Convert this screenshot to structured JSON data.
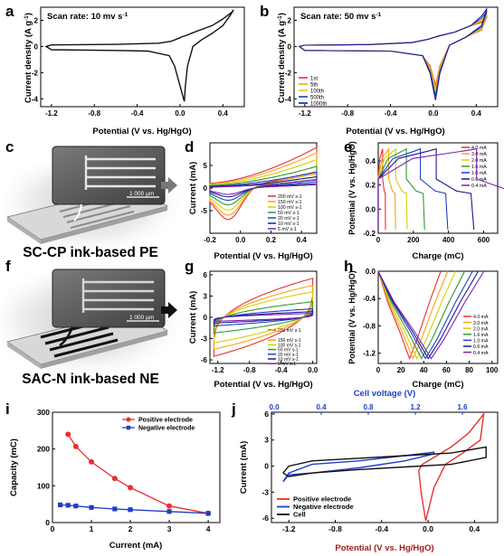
{
  "colors": {
    "red": "#e8312f",
    "orange": "#f5a31a",
    "yellow": "#d8d000",
    "green": "#2f9a2f",
    "blue": "#1f3fc4",
    "navy": "#1b1b8f",
    "purple": "#7d1fb3",
    "black": "#111111",
    "darkred": "#a61a1a"
  },
  "panel_labels": {
    "a": "a",
    "b": "b",
    "c": "c",
    "d": "d",
    "e": "e",
    "f": "f",
    "g": "g",
    "h": "h",
    "i": "i",
    "j": "j"
  },
  "axis_texts": {
    "current_density": "Current density (A g",
    "sup_m1": "-1",
    "close_paren": ")",
    "potential_x": "Potential (V vs. Hg/HgO)",
    "current_ma": "Current (mA)",
    "potential_y": "Potential (V vs. Hg/HgO)",
    "charge": "Charge (mC)",
    "capacity": "Capacity (mC)",
    "current_x": "Current (mA)",
    "cell_voltage": "Cell voltage (V)"
  },
  "annotations": {
    "scan_a": "Scan rate: 10 mv s",
    "scan_b": "Scan rate: 50 mv s",
    "scan_sup": "-1",
    "c_title": "SC-CP ink-based PE",
    "f_title": "SAC-N ink-based NE",
    "scale_c": "1 000 µm",
    "scale_f": "1 000 µm"
  },
  "chart_data": [
    {
      "panel": "a",
      "type": "line",
      "xlabel": "Potential (V vs. Hg/HgO)",
      "ylabel": "Current density (A g-1)",
      "xlim": [
        -1.3,
        0.6
      ],
      "ylim": [
        -4.6,
        3.0
      ],
      "xticks": [
        "-1.2",
        "-0.8",
        "-0.4",
        "0.0",
        "0.4"
      ],
      "yticks": [
        "-4",
        "-2",
        "0",
        "2"
      ],
      "annotation": "Scan rate: 10 mv s-1",
      "series": [
        {
          "x": [
            -1.2,
            -0.6,
            -0.2,
            -0.08,
            -0.02,
            0.02,
            0.06,
            0.12,
            0.2,
            0.3,
            0.4,
            0.48,
            0.5,
            0.47,
            0.4,
            0.3,
            0.2,
            0.12,
            0.07,
            0.05,
            0.04,
            0.0,
            -0.05,
            -0.1,
            -0.3,
            -0.6,
            -1.2,
            -1.25,
            -1.2
          ],
          "y": [
            0.12,
            0.16,
            0.25,
            0.4,
            0.6,
            0.75,
            0.85,
            1.05,
            1.3,
            1.6,
            2.1,
            2.6,
            2.8,
            2.4,
            1.6,
            1.0,
            0.5,
            0.0,
            -1.5,
            -3.0,
            -4.2,
            -3.0,
            -1.5,
            -0.7,
            -0.35,
            -0.3,
            -0.25,
            0.0,
            0.12
          ]
        }
      ]
    },
    {
      "panel": "b",
      "type": "line",
      "xlabel": "Potential (V vs. Hg/HgO)",
      "ylabel": "Current density (A g-1)",
      "xlim": [
        -1.3,
        0.6
      ],
      "ylim": [
        -4.6,
        3.0
      ],
      "xticks": [
        "-1.2",
        "-0.8",
        "-0.4",
        "0.0",
        "0.4"
      ],
      "yticks": [
        "-4",
        "-2",
        "0",
        "2"
      ],
      "annotation": "Scan rate: 50 mv s-1",
      "legend": "bottom-left",
      "series": [
        {
          "name": "1st",
          "peak": -3.0,
          "top": 2.3
        },
        {
          "name": "5th",
          "peak": -3.2,
          "top": 2.4
        },
        {
          "name": "100th",
          "peak": -3.5,
          "top": 2.5
        },
        {
          "name": "500th",
          "peak": -3.8,
          "top": 2.7
        },
        {
          "name": "1000th",
          "peak": -4.1,
          "top": 2.9
        }
      ]
    },
    {
      "panel": "d",
      "type": "line",
      "xlabel": "Potential (V vs. Hg/HgO)",
      "ylabel": "Current (mA)",
      "xlim": [
        -0.2,
        0.5
      ],
      "ylim": [
        -10,
        10
      ],
      "xticks": [
        "-0.2",
        "0.0",
        "0.2",
        "0.4"
      ],
      "yticks": [
        "-5",
        "0",
        "5"
      ],
      "legend": "bottom-right",
      "series": [
        {
          "name": "200 mV s-1",
          "amp": 9.0
        },
        {
          "name": "150 mV s-1",
          "amp": 7.8
        },
        {
          "name": "100 mV s-1",
          "amp": 6.3
        },
        {
          "name": "50 mV s-1",
          "amp": 4.8
        },
        {
          "name": "20 mV s-1",
          "amp": 3.5
        },
        {
          "name": "10 mV s-1",
          "amp": 2.5
        },
        {
          "name": "5 mV s-1",
          "amp": 1.8
        }
      ]
    },
    {
      "panel": "e",
      "type": "line",
      "xlabel": "Charge (mC)",
      "ylabel": "Potential (V vs. Hg/HgO)",
      "xlim": [
        0,
        680
      ],
      "ylim": [
        -0.2,
        0.55
      ],
      "xticks": [
        "0",
        "200",
        "400",
        "600"
      ],
      "yticks": [
        "-0.2",
        "0.0",
        "0.2",
        "0.4"
      ],
      "legend": "top-right",
      "series": [
        {
          "name": "4.0 mA",
          "q": 25
        },
        {
          "name": "3.0 mA",
          "q": 60
        },
        {
          "name": "2.0 mA",
          "q": 100
        },
        {
          "name": "1.6 mA",
          "q": 160
        },
        {
          "name": "1.0 mA",
          "q": 240
        },
        {
          "name": "0.6 mA",
          "q": 330
        },
        {
          "name": "0.4 mA",
          "q": 560
        }
      ]
    },
    {
      "panel": "g",
      "type": "line",
      "xlabel": "Potential (V vs. Hg/HgO)",
      "ylabel": "Current (mA)",
      "xlim": [
        -1.3,
        0.05
      ],
      "ylim": [
        -6.5,
        6.5
      ],
      "xticks": [
        "-1.2",
        "-0.8",
        "-0.4",
        "0.0"
      ],
      "yticks": [
        "-6",
        "-3",
        "0",
        "3",
        "6"
      ],
      "legend": "bottom-right",
      "series": [
        {
          "name": "200 mV s-1",
          "amp": 5.5
        },
        {
          "name": "150 mV s-1",
          "amp": 4.5
        },
        {
          "name": "100 mV s-1",
          "amp": 3.6
        },
        {
          "name": "50 mV s-1",
          "amp": 2.2
        },
        {
          "name": "20 mV s-1",
          "amp": 1.2
        },
        {
          "name": "10 mV s-1",
          "amp": 0.8
        },
        {
          "name": "5 mV s-1",
          "amp": 0.55
        }
      ]
    },
    {
      "panel": "h",
      "type": "line",
      "xlabel": "Charge (mC)",
      "ylabel": "Potential (V vs. Hg/HgO)",
      "xlim": [
        0,
        105
      ],
      "ylim": [
        -1.35,
        0.0
      ],
      "xticks": [
        "0",
        "20",
        "40",
        "60",
        "80",
        "100"
      ],
      "yticks": [
        "-1.2",
        "-0.8",
        "-0.4",
        "0.0"
      ],
      "legend": "bottom-right",
      "series": [
        {
          "name": "4.0 mA",
          "q": 55
        },
        {
          "name": "3.0 mA",
          "q": 61
        },
        {
          "name": "2.0 mA",
          "q": 68
        },
        {
          "name": "1.6 mA",
          "q": 76
        },
        {
          "name": "1.0 mA",
          "q": 83
        },
        {
          "name": "0.6 mA",
          "q": 88
        },
        {
          "name": "0.4 mA",
          "q": 93
        }
      ]
    },
    {
      "panel": "i",
      "type": "line",
      "xlabel": "Current (mA)",
      "ylabel": "Capacity (mC)",
      "xlim": [
        0,
        4.3
      ],
      "ylim": [
        0,
        300
      ],
      "xticks": [
        "0",
        "1",
        "2",
        "3",
        "4"
      ],
      "yticks": [
        "0",
        "100",
        "200",
        "300"
      ],
      "legend": "top-right",
      "series": [
        {
          "name": "Positive electrode",
          "x": [
            0.4,
            0.6,
            1.0,
            1.6,
            2.0,
            3.0,
            4.0
          ],
          "y": [
            240,
            207,
            165,
            120,
            95,
            45,
            25
          ]
        },
        {
          "name": "Negative electrode",
          "x": [
            0.2,
            0.4,
            0.6,
            1.0,
            1.6,
            2.0,
            3.0,
            4.0
          ],
          "y": [
            48,
            47,
            45,
            41,
            37,
            35,
            30,
            25
          ]
        }
      ]
    },
    {
      "panel": "j",
      "type": "line",
      "xlabel": "Potential (V vs. Hg/HgO)",
      "ylabel": "Current (mA)",
      "x2label": "Cell voltage (V)",
      "xlim": [
        -1.35,
        0.6
      ],
      "ylim": [
        -6.5,
        6.2
      ],
      "xticks": [
        "-1.2",
        "-0.8",
        "-0.4",
        "0.0",
        "0.4"
      ],
      "yticks": [
        "-6",
        "-3",
        "0",
        "3",
        "6"
      ],
      "x2ticks": [
        "0.0",
        "0.4",
        "0.8",
        "1.2",
        "1.6"
      ],
      "legend": "bottom-left",
      "series": [
        {
          "name": "Positive electrode"
        },
        {
          "name": "Negative electrode"
        },
        {
          "name": "Cell"
        }
      ]
    }
  ]
}
